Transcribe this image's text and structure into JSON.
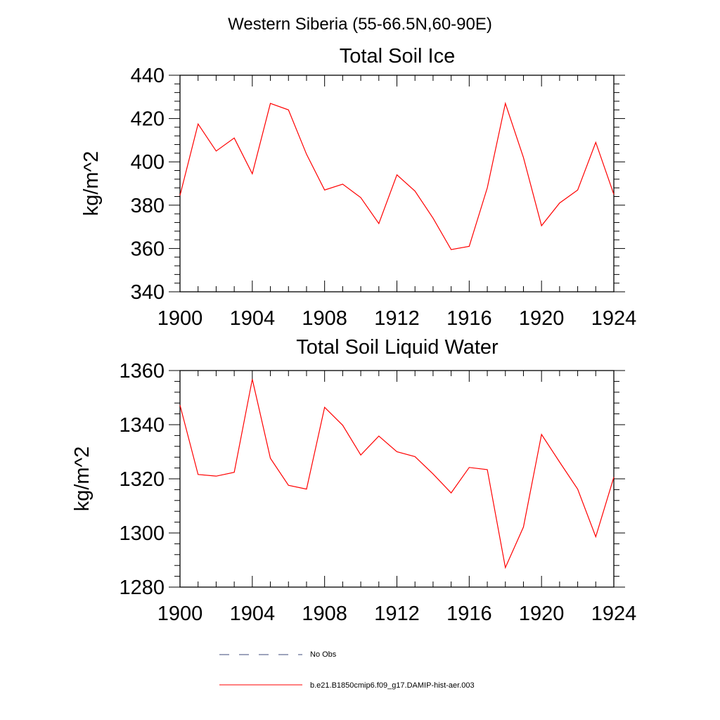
{
  "figure": {
    "suptitle": "Western Siberia (55-66.5N,60-90E)"
  },
  "legend": [
    {
      "label": "No Obs",
      "style": "dashed",
      "color": "#3b4a7a"
    },
    {
      "label": "b.e21.B1850cmip6.f09_g17.DAMIP-hist-aer.003",
      "style": "solid",
      "color": "#ff0000"
    }
  ],
  "chart_data": [
    {
      "type": "line",
      "title": "Total Soil Ice",
      "xlabel": "",
      "ylabel": "kg/m^2",
      "xlim": [
        1900,
        1924
      ],
      "ylim": [
        340,
        440
      ],
      "xticks": [
        "1900",
        "1904",
        "1908",
        "1912",
        "1916",
        "1920",
        "1924"
      ],
      "yticks": [
        "340",
        "360",
        "380",
        "400",
        "420",
        "440"
      ],
      "x": [
        1900,
        1901,
        1902,
        1903,
        1904,
        1905,
        1906,
        1907,
        1908,
        1909,
        1910,
        1911,
        1912,
        1913,
        1914,
        1915,
        1916,
        1917,
        1918,
        1919,
        1920,
        1921,
        1922,
        1923,
        1924
      ],
      "series": [
        {
          "name": "b.e21.B1850cmip6.f09_g17.DAMIP-hist-aer.003",
          "color": "#ff0000",
          "values": [
            384.5,
            417.5,
            405,
            411,
            394.5,
            427,
            424,
            403.5,
            387,
            389.7,
            383.5,
            371.5,
            394,
            386.5,
            374,
            359.5,
            361,
            388,
            427,
            402,
            370.5,
            381,
            387,
            409,
            385
          ]
        }
      ],
      "grid": false
    },
    {
      "type": "line",
      "title": "Total Soil Liquid Water",
      "xlabel": "",
      "ylabel": "kg/m^2",
      "xlim": [
        1900,
        1924
      ],
      "ylim": [
        1280,
        1360
      ],
      "xticks": [
        "1900",
        "1904",
        "1908",
        "1912",
        "1916",
        "1920",
        "1924"
      ],
      "yticks": [
        "1280",
        "1300",
        "1320",
        "1340",
        "1360"
      ],
      "x": [
        1900,
        1901,
        1902,
        1903,
        1904,
        1905,
        1906,
        1907,
        1908,
        1909,
        1910,
        1911,
        1912,
        1913,
        1914,
        1915,
        1916,
        1917,
        1918,
        1919,
        1920,
        1921,
        1922,
        1923,
        1924
      ],
      "series": [
        {
          "name": "b.e21.B1850cmip6.f09_g17.DAMIP-hist-aer.003",
          "color": "#ff0000",
          "values": [
            1347.2,
            1321.6,
            1321,
            1322.4,
            1356.8,
            1327.6,
            1317.6,
            1316.2,
            1346.4,
            1339.8,
            1328.8,
            1335.8,
            1330,
            1328.2,
            1321.8,
            1314.8,
            1324.2,
            1323.4,
            1287.2,
            1302.2,
            1336.4,
            1326.2,
            1316.2,
            1298.6,
            1320.6
          ]
        }
      ],
      "grid": false
    }
  ]
}
